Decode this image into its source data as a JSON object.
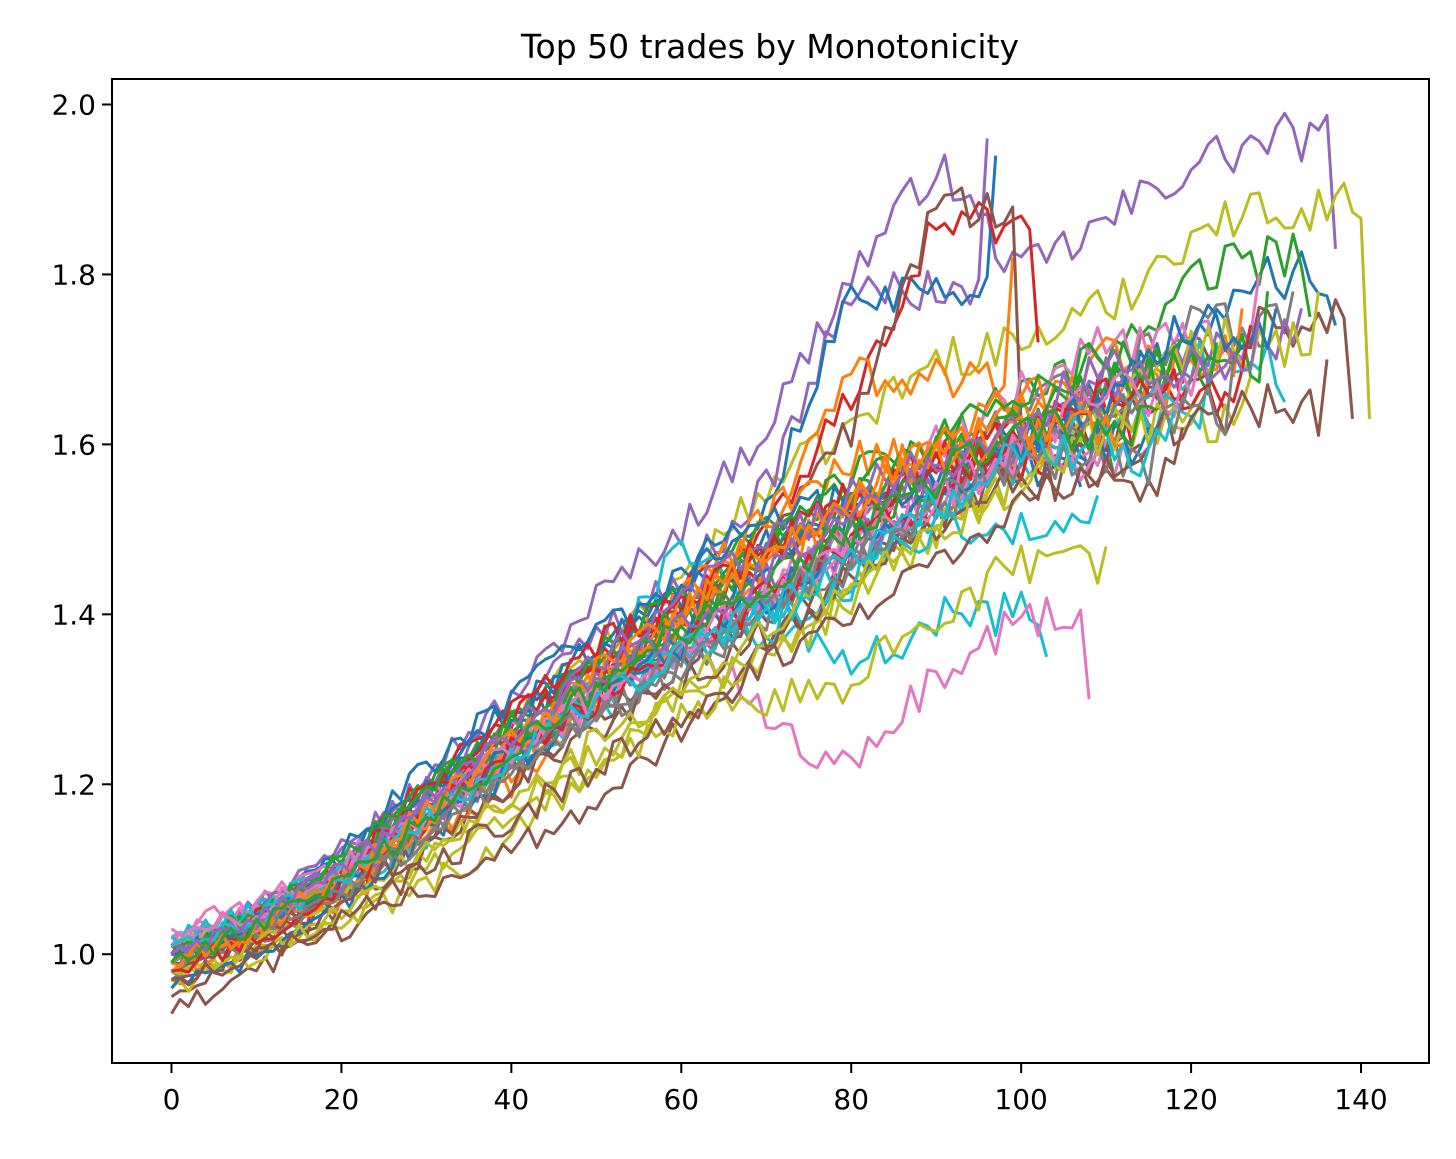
{
  "chart_data": {
    "type": "line",
    "title": "Top 50 trades by Monotonicity",
    "xlabel": "",
    "ylabel": "",
    "xlim": [
      -7,
      148
    ],
    "ylim": [
      0.872,
      2.03
    ],
    "x_ticks": [
      0,
      20,
      40,
      60,
      80,
      100,
      120,
      140
    ],
    "x_tick_labels": [
      "0",
      "20",
      "40",
      "60",
      "80",
      "100",
      "120",
      "140"
    ],
    "y_ticks": [
      1.0,
      1.2,
      1.4,
      1.6,
      1.8,
      2.0
    ],
    "y_tick_labels": [
      "1.0",
      "1.2",
      "1.4",
      "1.6",
      "1.8",
      "2.0"
    ],
    "grid": false,
    "legend": "none",
    "palette": [
      "#1f77b4",
      "#ff7f0e",
      "#2ca02c",
      "#d62728",
      "#9467bd",
      "#8c564b",
      "#e377c2",
      "#7f7f7f",
      "#bcbd22",
      "#17becf"
    ],
    "series_note": "50 series; each series lists y-values at x = 0, 10, 20, ... (sampled every 10 steps) plus its final point; intermediate steps are shown as noisy fluctuations",
    "series": [
      {
        "color": "#9467bd",
        "x_end": 137,
        "y": [
          0.98,
          1.06,
          1.12,
          1.22,
          1.3,
          1.42,
          1.5,
          1.62,
          1.8,
          1.93,
          1.8,
          1.86,
          1.93,
          1.96,
          1.83
        ]
      },
      {
        "color": "#bcbd22",
        "x_end": 141,
        "y": [
          1.0,
          1.05,
          1.1,
          1.18,
          1.27,
          1.36,
          1.44,
          1.55,
          1.62,
          1.7,
          1.72,
          1.76,
          1.85,
          1.88,
          1.63
        ]
      },
      {
        "color": "#9467bd",
        "x_end": 96,
        "y": [
          1.0,
          1.05,
          1.12,
          1.2,
          1.28,
          1.38,
          1.44,
          1.55,
          1.78,
          1.96
        ]
      },
      {
        "color": "#1f77b4",
        "x_end": 97,
        "y": [
          0.97,
          1.05,
          1.11,
          1.2,
          1.29,
          1.36,
          1.45,
          1.52,
          1.78,
          1.94
        ]
      },
      {
        "color": "#d62728",
        "x_end": 102,
        "y": [
          1.0,
          1.04,
          1.1,
          1.2,
          1.28,
          1.35,
          1.42,
          1.5,
          1.66,
          1.86,
          1.72
        ]
      },
      {
        "color": "#ff7f0e",
        "x_end": 99,
        "y": [
          0.98,
          1.02,
          1.09,
          1.17,
          1.25,
          1.33,
          1.42,
          1.5,
          1.68,
          1.82
        ]
      },
      {
        "color": "#8c564b",
        "x_end": 100,
        "y": [
          0.95,
          1.0,
          1.06,
          1.14,
          1.22,
          1.31,
          1.4,
          1.48,
          1.62,
          1.88,
          1.62
        ]
      },
      {
        "color": "#17becf",
        "x_end": 103,
        "y": [
          1.02,
          1.05,
          1.1,
          1.17,
          1.25,
          1.33,
          1.48,
          1.4,
          1.33,
          1.4,
          1.35
        ]
      },
      {
        "color": "#e377c2",
        "x_end": 108,
        "y": [
          1.01,
          1.04,
          1.09,
          1.16,
          1.24,
          1.32,
          1.38,
          1.28,
          1.21,
          1.33,
          1.4,
          1.3
        ]
      },
      {
        "color": "#bcbd22",
        "x_end": 110,
        "y": [
          0.96,
          1.0,
          1.04,
          1.08,
          1.14,
          1.22,
          1.3,
          1.3,
          1.32,
          1.4,
          1.46,
          1.48
        ]
      },
      {
        "color": "#1f77b4",
        "x_end": 137,
        "y": [
          1.0,
          1.05,
          1.12,
          1.22,
          1.3,
          1.38,
          1.42,
          1.48,
          1.52,
          1.58,
          1.62,
          1.66,
          1.72,
          1.8,
          1.74
        ]
      },
      {
        "color": "#2ca02c",
        "x_end": 134,
        "y": [
          1.0,
          1.04,
          1.1,
          1.19,
          1.27,
          1.35,
          1.42,
          1.5,
          1.56,
          1.6,
          1.66,
          1.7,
          1.8,
          1.82,
          1.75
        ]
      },
      {
        "color": "#d62728",
        "x_end": 124,
        "y": [
          0.99,
          1.03,
          1.08,
          1.18,
          1.28,
          1.34,
          1.4,
          1.46,
          1.5,
          1.56,
          1.62,
          1.66,
          1.64
        ]
      },
      {
        "color": "#7f7f7f",
        "x_end": 132,
        "y": [
          1.0,
          1.04,
          1.09,
          1.16,
          1.24,
          1.3,
          1.36,
          1.42,
          1.5,
          1.56,
          1.64,
          1.68,
          1.74,
          1.78
        ]
      },
      {
        "color": "#8c564b",
        "x_end": 139,
        "y": [
          0.93,
          0.98,
          1.03,
          1.08,
          1.12,
          1.18,
          1.26,
          1.36,
          1.46,
          1.52,
          1.58,
          1.62,
          1.7,
          1.74,
          1.63
        ]
      },
      {
        "color": "#17becf",
        "x_end": 131,
        "y": [
          1.01,
          1.04,
          1.08,
          1.14,
          1.22,
          1.28,
          1.34,
          1.38,
          1.44,
          1.52,
          1.58,
          1.62,
          1.7,
          1.65
        ]
      },
      {
        "color": "#e377c2",
        "x_end": 128,
        "y": [
          1.03,
          1.06,
          1.11,
          1.18,
          1.26,
          1.32,
          1.36,
          1.42,
          1.5,
          1.6,
          1.66,
          1.72,
          1.8
        ]
      },
      {
        "color": "#ff7f0e",
        "x_end": 118,
        "y": [
          0.97,
          1.01,
          1.06,
          1.14,
          1.2,
          1.3,
          1.42,
          1.52,
          1.58,
          1.6,
          1.66,
          1.7
        ]
      },
      {
        "color": "#9467bd",
        "x_end": 125,
        "y": [
          1.01,
          1.05,
          1.1,
          1.18,
          1.24,
          1.32,
          1.4,
          1.44,
          1.5,
          1.56,
          1.6,
          1.68,
          1.7
        ]
      },
      {
        "color": "#bcbd22",
        "x_end": 127,
        "y": [
          0.97,
          1.0,
          1.04,
          1.1,
          1.16,
          1.22,
          1.28,
          1.34,
          1.42,
          1.5,
          1.56,
          1.62,
          1.68
        ]
      },
      {
        "color": "#1f77b4",
        "x_end": 107,
        "y": [
          0.99,
          1.03,
          1.09,
          1.18,
          1.27,
          1.35,
          1.44,
          1.5,
          1.54,
          1.57,
          1.55
        ]
      },
      {
        "color": "#2ca02c",
        "x_end": 111,
        "y": [
          1.0,
          1.03,
          1.08,
          1.16,
          1.24,
          1.3,
          1.38,
          1.48,
          1.56,
          1.6,
          1.62,
          1.56
        ]
      },
      {
        "color": "#d62728",
        "x_end": 113,
        "y": [
          0.98,
          1.02,
          1.07,
          1.16,
          1.26,
          1.34,
          1.41,
          1.48,
          1.52,
          1.58,
          1.62,
          1.6
        ]
      },
      {
        "color": "#8c564b",
        "x_end": 114,
        "y": [
          0.97,
          1.01,
          1.06,
          1.12,
          1.2,
          1.28,
          1.34,
          1.4,
          1.46,
          1.52,
          1.58,
          1.6
        ]
      },
      {
        "color": "#e377c2",
        "x_end": 117,
        "y": [
          1.02,
          1.05,
          1.1,
          1.17,
          1.24,
          1.3,
          1.36,
          1.42,
          1.48,
          1.54,
          1.6,
          1.64
        ]
      },
      {
        "color": "#7f7f7f",
        "x_end": 120,
        "y": [
          1.0,
          1.03,
          1.08,
          1.15,
          1.22,
          1.28,
          1.34,
          1.4,
          1.46,
          1.52,
          1.58,
          1.64,
          1.68
        ]
      },
      {
        "color": "#17becf",
        "x_end": 122,
        "y": [
          1.0,
          1.04,
          1.09,
          1.16,
          1.23,
          1.3,
          1.36,
          1.4,
          1.46,
          1.54,
          1.6,
          1.64,
          1.68
        ]
      },
      {
        "color": "#ff7f0e",
        "x_end": 126,
        "y": [
          0.98,
          1.02,
          1.07,
          1.14,
          1.22,
          1.3,
          1.38,
          1.46,
          1.52,
          1.58,
          1.64,
          1.7,
          1.76
        ]
      },
      {
        "color": "#9467bd",
        "x_end": 133,
        "y": [
          0.99,
          1.03,
          1.08,
          1.16,
          1.23,
          1.3,
          1.36,
          1.42,
          1.48,
          1.54,
          1.6,
          1.66,
          1.72,
          1.76
        ]
      },
      {
        "color": "#bcbd22",
        "x_end": 135,
        "y": [
          1.01,
          1.03,
          1.06,
          1.12,
          1.18,
          1.24,
          1.3,
          1.36,
          1.42,
          1.5,
          1.58,
          1.64,
          1.72,
          1.78
        ]
      },
      {
        "color": "#2ca02c",
        "x_end": 129,
        "y": [
          1.0,
          1.04,
          1.11,
          1.2,
          1.28,
          1.34,
          1.4,
          1.48,
          1.54,
          1.6,
          1.66,
          1.7,
          1.78
        ]
      },
      {
        "color": "#1f77b4",
        "x_end": 115,
        "y": [
          0.96,
          1.0,
          1.06,
          1.14,
          1.22,
          1.3,
          1.38,
          1.46,
          1.52,
          1.56,
          1.6,
          1.62
        ]
      },
      {
        "color": "#d62728",
        "x_end": 105,
        "y": [
          1.0,
          1.04,
          1.1,
          1.19,
          1.28,
          1.36,
          1.42,
          1.48,
          1.54,
          1.58,
          1.6
        ]
      },
      {
        "color": "#8c564b",
        "x_end": 119,
        "y": [
          0.99,
          1.02,
          1.07,
          1.13,
          1.2,
          1.26,
          1.32,
          1.38,
          1.44,
          1.5,
          1.56,
          1.62
        ]
      },
      {
        "color": "#e377c2",
        "x_end": 112,
        "y": [
          1.01,
          1.04,
          1.09,
          1.16,
          1.23,
          1.3,
          1.36,
          1.42,
          1.48,
          1.54,
          1.58,
          1.6
        ]
      },
      {
        "color": "#7f7f7f",
        "x_end": 116,
        "y": [
          0.98,
          1.02,
          1.07,
          1.14,
          1.21,
          1.28,
          1.34,
          1.4,
          1.46,
          1.52,
          1.58,
          1.62
        ]
      },
      {
        "color": "#17becf",
        "x_end": 109,
        "y": [
          1.02,
          1.05,
          1.1,
          1.17,
          1.24,
          1.31,
          1.36,
          1.4,
          1.44,
          1.5,
          1.54
        ]
      },
      {
        "color": "#ff7f0e",
        "x_end": 104,
        "y": [
          0.99,
          1.03,
          1.08,
          1.16,
          1.24,
          1.32,
          1.4,
          1.47,
          1.54,
          1.6,
          1.64
        ]
      },
      {
        "color": "#9467bd",
        "x_end": 106,
        "y": [
          1.0,
          1.04,
          1.1,
          1.18,
          1.26,
          1.34,
          1.42,
          1.48,
          1.54,
          1.6,
          1.62
        ]
      },
      {
        "color": "#bcbd22",
        "x_end": 121,
        "y": [
          0.98,
          1.01,
          1.05,
          1.12,
          1.18,
          1.25,
          1.32,
          1.38,
          1.44,
          1.5,
          1.56,
          1.62,
          1.66
        ]
      },
      {
        "color": "#2ca02c",
        "x_end": 123,
        "y": [
          1.01,
          1.05,
          1.11,
          1.19,
          1.26,
          1.32,
          1.38,
          1.44,
          1.5,
          1.56,
          1.62,
          1.68,
          1.72
        ]
      },
      {
        "color": "#1f77b4",
        "x_end": 130,
        "y": [
          1.0,
          1.04,
          1.09,
          1.16,
          1.24,
          1.3,
          1.36,
          1.42,
          1.48,
          1.54,
          1.6,
          1.66,
          1.74,
          1.76
        ]
      },
      {
        "color": "#d62728",
        "x_end": 127,
        "y": [
          0.98,
          1.02,
          1.08,
          1.16,
          1.24,
          1.3,
          1.36,
          1.42,
          1.48,
          1.54,
          1.6,
          1.66,
          1.74
        ]
      },
      {
        "color": "#8c564b",
        "x_end": 136,
        "y": [
          0.97,
          1.0,
          1.04,
          1.1,
          1.16,
          1.22,
          1.28,
          1.34,
          1.4,
          1.46,
          1.52,
          1.58,
          1.64,
          1.7
        ]
      },
      {
        "color": "#e377c2",
        "x_end": 121,
        "y": [
          1.01,
          1.05,
          1.1,
          1.17,
          1.24,
          1.3,
          1.36,
          1.42,
          1.48,
          1.54,
          1.6,
          1.66,
          1.7
        ]
      },
      {
        "color": "#7f7f7f",
        "x_end": 125,
        "y": [
          0.99,
          1.03,
          1.08,
          1.15,
          1.22,
          1.29,
          1.35,
          1.41,
          1.47,
          1.53,
          1.59,
          1.64,
          1.7
        ]
      },
      {
        "color": "#17becf",
        "x_end": 118,
        "y": [
          1.01,
          1.04,
          1.09,
          1.16,
          1.23,
          1.3,
          1.36,
          1.41,
          1.47,
          1.53,
          1.59,
          1.64
        ]
      },
      {
        "color": "#ff7f0e",
        "x_end": 112,
        "y": [
          0.99,
          1.03,
          1.09,
          1.17,
          1.25,
          1.33,
          1.4,
          1.47,
          1.53,
          1.58,
          1.62,
          1.6
        ]
      },
      {
        "color": "#9467bd",
        "x_end": 128,
        "y": [
          1.0,
          1.04,
          1.1,
          1.18,
          1.26,
          1.33,
          1.39,
          1.45,
          1.51,
          1.57,
          1.63,
          1.69,
          1.75
        ]
      },
      {
        "color": "#2ca02c",
        "x_end": 116,
        "y": [
          0.99,
          1.03,
          1.08,
          1.16,
          1.24,
          1.31,
          1.38,
          1.44,
          1.5,
          1.56,
          1.62,
          1.64
        ]
      }
    ]
  }
}
